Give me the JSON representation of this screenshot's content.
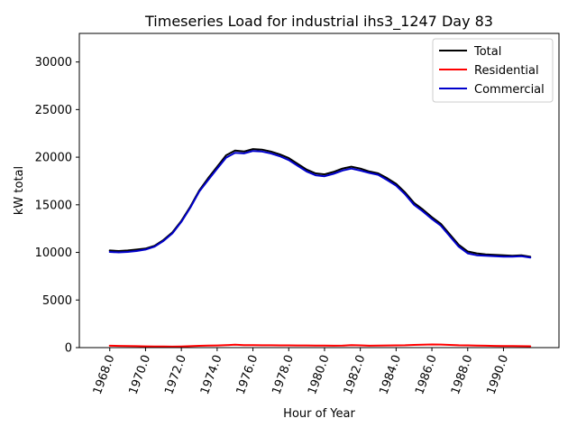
{
  "chart_data": {
    "type": "line",
    "title": "Timeseries Load for industrial ihs3_1247  Day 83",
    "xlabel": "Hour of Year",
    "ylabel": "kW total",
    "xlim": [
      1966.3,
      1993.1
    ],
    "ylim": [
      0,
      33000
    ],
    "grid": false,
    "legend_position": "top-right",
    "x_ticks": [
      1968,
      1970,
      1972,
      1974,
      1976,
      1978,
      1980,
      1982,
      1984,
      1986,
      1988,
      1990
    ],
    "x_tick_labels": [
      "1968.0",
      "1970.0",
      "1972.0",
      "1974.0",
      "1976.0",
      "1978.0",
      "1980.0",
      "1982.0",
      "1984.0",
      "1986.0",
      "1988.0",
      "1990.0"
    ],
    "y_ticks": [
      0,
      5000,
      10000,
      15000,
      20000,
      25000,
      30000
    ],
    "y_tick_labels": [
      "0",
      "5000",
      "10000",
      "15000",
      "20000",
      "25000",
      "30000"
    ],
    "x": [
      1968.0,
      1968.5,
      1969.0,
      1969.5,
      1970.0,
      1970.5,
      1971.0,
      1971.5,
      1972.0,
      1972.5,
      1973.0,
      1973.5,
      1974.0,
      1974.5,
      1975.0,
      1975.5,
      1976.0,
      1976.5,
      1977.0,
      1977.5,
      1978.0,
      1978.5,
      1979.0,
      1979.5,
      1980.0,
      1980.5,
      1981.0,
      1981.5,
      1982.0,
      1982.5,
      1983.0,
      1983.5,
      1984.0,
      1984.5,
      1985.0,
      1985.5,
      1986.0,
      1986.5,
      1987.0,
      1987.5,
      1988.0,
      1988.5,
      1989.0,
      1989.5,
      1990.0,
      1990.5,
      1991.0,
      1991.5
    ],
    "series": [
      {
        "name": "Total",
        "color": "#000000",
        "values": [
          10200,
          10150,
          10200,
          10300,
          10400,
          10700,
          11300,
          12100,
          13300,
          14800,
          16500,
          17800,
          19000,
          20200,
          20700,
          20600,
          20850,
          20800,
          20600,
          20300,
          19900,
          19300,
          18700,
          18300,
          18200,
          18450,
          18800,
          19000,
          18800,
          18500,
          18300,
          17800,
          17200,
          16300,
          15200,
          14500,
          13700,
          13000,
          11900,
          10800,
          10100,
          9900,
          9800,
          9750,
          9700,
          9650,
          9700,
          9550
        ]
      },
      {
        "name": "Residential",
        "color": "#ff0000",
        "values": [
          200,
          180,
          170,
          150,
          130,
          120,
          110,
          100,
          120,
          150,
          190,
          220,
          230,
          260,
          300,
          270,
          260,
          250,
          250,
          240,
          240,
          230,
          230,
          220,
          210,
          200,
          210,
          260,
          240,
          200,
          210,
          230,
          240,
          250,
          280,
          310,
          330,
          320,
          280,
          250,
          240,
          220,
          200,
          180,
          170,
          160,
          150,
          140
        ]
      },
      {
        "name": "Commercial",
        "color": "#0000cc",
        "values": [
          10050,
          10000,
          10050,
          10150,
          10300,
          10600,
          11200,
          12000,
          13200,
          14700,
          16400,
          17600,
          18800,
          19950,
          20450,
          20400,
          20650,
          20600,
          20400,
          20100,
          19700,
          19100,
          18500,
          18100,
          18000,
          18250,
          18600,
          18800,
          18600,
          18350,
          18150,
          17600,
          17000,
          16100,
          15000,
          14300,
          13500,
          12800,
          11700,
          10600,
          9900,
          9700,
          9650,
          9600,
          9550,
          9550,
          9600,
          9450
        ]
      }
    ]
  }
}
